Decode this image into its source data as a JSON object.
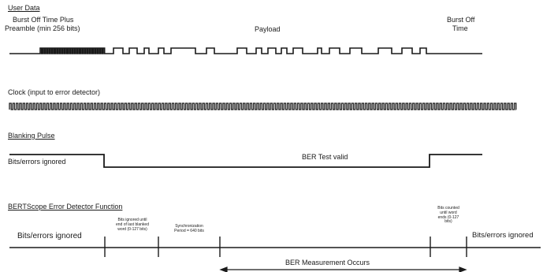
{
  "sections": {
    "user_data": {
      "title": "User Data",
      "burst_off_plus_preamble": [
        "Burst Off Time Plus",
        "Preamble  (min 256 bits)"
      ],
      "payload": "Payload",
      "burst_off_time": [
        "Burst Off",
        "Time"
      ]
    },
    "clock": {
      "title": "Clock (input to error detector)"
    },
    "blanking": {
      "title": "Blanking Pulse",
      "ignored": "Bits/errors ignored",
      "valid": "BER Test valid"
    },
    "detector": {
      "title": "BERTScope Error Detector Function",
      "ignored_left": "Bits/errors ignored",
      "ignored_until": [
        "Bits ignored until",
        "end of last blanked",
        "word (0-127 bits)"
      ],
      "sync_period": [
        "Synchronization",
        "Period = 640 bits"
      ],
      "bits_counted": [
        "Bits counted",
        "until word",
        "ends (0-127",
        "bits)"
      ],
      "ignored_right": "Bits/errors ignored",
      "measurement": "BER Measurement Occurs"
    }
  },
  "colors": {
    "ink": "#1a1a1a",
    "background": "#ffffff"
  }
}
